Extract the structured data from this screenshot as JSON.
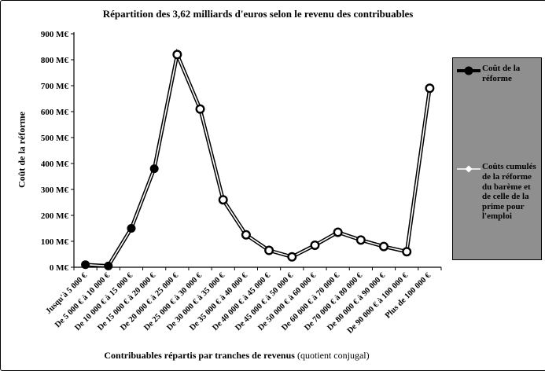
{
  "figure": {
    "bg": "#ffffff",
    "border_color": "#000000"
  },
  "chart_data": {
    "type": "line",
    "title": "Répartition des 3,62 milliards d'euros selon le revenu des contribuables",
    "ylabel": "Coût de la réforme",
    "xlabel_main": "Contribuables répartis par tranches de revenus",
    "xlabel_paren": " (quotient conjugal)",
    "ylim": [
      0,
      900
    ],
    "ytick_step": 100,
    "ytick_labels": [
      "0 M€",
      "100 M€",
      "200 M€",
      "300 M€",
      "400 M€",
      "500 M€",
      "600 M€",
      "700 M€",
      "800 M€",
      "900 M€"
    ],
    "grid": false,
    "legend_position": "right",
    "legend_bg": "#8f8f8f",
    "categories": [
      "Jusqu'à 5 000 €",
      "De 5 000 € à 10 000 €",
      "De 10 000 € à 15 000 €",
      "De 15 000 € à 20 000 €",
      "De 20 000 € à 25 000 €",
      "De 25 000 € à 30 000 €",
      "De 30 000 € à 35 000 €",
      "De 35 000 € à 40 000 €",
      "De 40 000 € à 45 000 €",
      "De 45 000 € à 50 000 €",
      "De 50 000 € à 60 000 €",
      "De 60 000 € à 70 000 €",
      "De 70 000 € à 80 000 €",
      "De 80 000 € à 90 000 €",
      "De 90 000 € à 100 000 €",
      "Plus de 100 000 €"
    ],
    "series": [
      {
        "name": "Coût de la réforme",
        "line_color": "#000000",
        "marker": "filled-circle",
        "marker_color": "#000000",
        "values": [
          10,
          5,
          150,
          380,
          820,
          610,
          260,
          125,
          65,
          40,
          85,
          135,
          105,
          80,
          60,
          690
        ],
        "marker_indices": [
          0,
          1,
          2,
          3
        ]
      },
      {
        "name": "Coûts cumulés de la réforme du barème et de celle de la prime pour l'emploi",
        "line_color": "#ffffff",
        "marker": "open-circle",
        "marker_color": "#ffffff",
        "values": [
          10,
          5,
          150,
          380,
          820,
          610,
          260,
          125,
          65,
          40,
          85,
          135,
          105,
          80,
          60,
          690
        ],
        "marker_indices": [
          4,
          5,
          6,
          7,
          8,
          9,
          10,
          11,
          12,
          13,
          14,
          15
        ]
      }
    ]
  }
}
